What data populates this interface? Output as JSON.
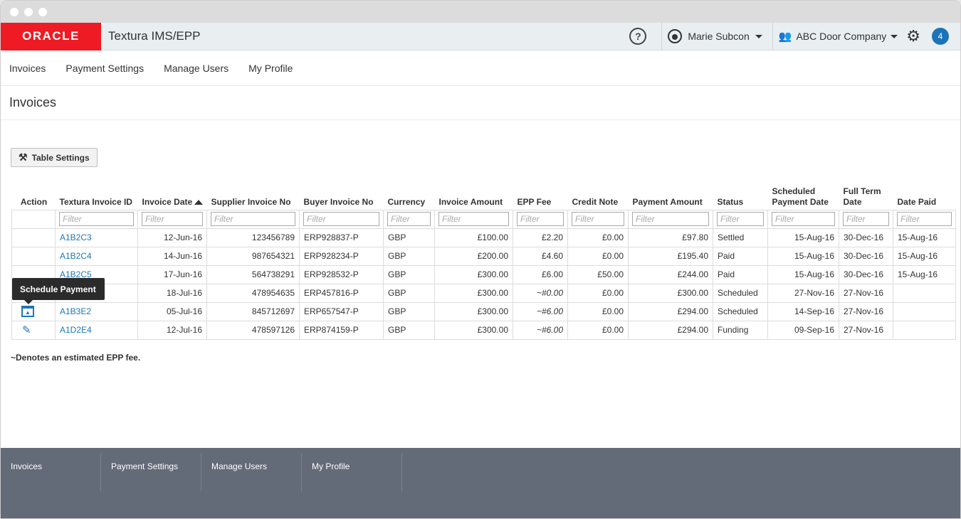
{
  "header": {
    "logo": "ORACLE",
    "app_title": "Textura IMS/EPP",
    "help_label": "?",
    "user_name": "Marie Subcon",
    "company_name": "ABC Door Company",
    "notification_count": "4"
  },
  "nav": {
    "items": [
      {
        "label": "Invoices"
      },
      {
        "label": "Payment Settings"
      },
      {
        "label": "Manage Users"
      },
      {
        "label": "My Profile"
      }
    ]
  },
  "page": {
    "title": "Invoices",
    "table_settings_label": "Table Settings",
    "note": "~Denotes an estimated EPP fee.",
    "tooltip": "Schedule Payment"
  },
  "table": {
    "columns": [
      {
        "key": "action",
        "label": "Action"
      },
      {
        "key": "textura_id",
        "label": "Textura Invoice ID"
      },
      {
        "key": "invoice_date",
        "label": "Invoice Date"
      },
      {
        "key": "supplier_no",
        "label": "Supplier Invoice No"
      },
      {
        "key": "buyer_no",
        "label": "Buyer Invoice No"
      },
      {
        "key": "currency",
        "label": "Currency"
      },
      {
        "key": "invoice_amount",
        "label": "Invoice Amount"
      },
      {
        "key": "epp_fee",
        "label": "EPP Fee"
      },
      {
        "key": "credit_note",
        "label": "Credit Note"
      },
      {
        "key": "payment_amount",
        "label": "Payment Amount"
      },
      {
        "key": "status",
        "label": "Status"
      },
      {
        "key": "scheduled_date",
        "label": "Scheduled Payment Date"
      },
      {
        "key": "full_term",
        "label": "Full Term Date"
      },
      {
        "key": "date_paid",
        "label": "Date Paid"
      }
    ],
    "filter_placeholder": "Filter",
    "rows": [
      {
        "action": "",
        "textura_id": "A1B2C3",
        "invoice_date": "12-Jun-16",
        "supplier_no": "123456789",
        "buyer_no": "ERP928837-P",
        "currency": "GBP",
        "invoice_amount": "£100.00",
        "epp_fee": "£2.20",
        "credit_note": "£0.00",
        "payment_amount": "£97.80",
        "status": "Settled",
        "scheduled_date": "15-Aug-16",
        "full_term": "30-Dec-16",
        "date_paid": "15-Aug-16"
      },
      {
        "action": "",
        "textura_id": "A1B2C4",
        "invoice_date": "14-Jun-16",
        "supplier_no": "987654321",
        "buyer_no": "ERP928234-P",
        "currency": "GBP",
        "invoice_amount": "£200.00",
        "epp_fee": "£4.60",
        "credit_note": "£0.00",
        "payment_amount": "£195.40",
        "status": "Paid",
        "scheduled_date": "15-Aug-16",
        "full_term": "30-Dec-16",
        "date_paid": "15-Aug-16"
      },
      {
        "action": "",
        "textura_id": "A1B2C5",
        "invoice_date": "17-Jun-16",
        "supplier_no": "564738291",
        "buyer_no": "ERP928532-P",
        "currency": "GBP",
        "invoice_amount": "£300.00",
        "epp_fee": "£6.00",
        "credit_note": "£50.00",
        "payment_amount": "£244.00",
        "status": "Paid",
        "scheduled_date": "15-Aug-16",
        "full_term": "30-Dec-16",
        "date_paid": "15-Aug-16"
      },
      {
        "action": "",
        "textura_id": "",
        "invoice_date": "18-Jul-16",
        "supplier_no": "478954635",
        "buyer_no": "ERP457816-P",
        "currency": "GBP",
        "invoice_amount": "£300.00",
        "epp_fee": "~#0.00",
        "credit_note": "£0.00",
        "payment_amount": "£300.00",
        "status": "Scheduled",
        "scheduled_date": "27-Nov-16",
        "full_term": "27-Nov-16",
        "date_paid": ""
      },
      {
        "action": "calendar-icon",
        "textura_id": "A1B3E2",
        "invoice_date": "05-Jul-16",
        "supplier_no": "845712697",
        "buyer_no": "ERP657547-P",
        "currency": "GBP",
        "invoice_amount": "£300.00",
        "epp_fee": "~#6.00",
        "credit_note": "£0.00",
        "payment_amount": "£294.00",
        "status": "Scheduled",
        "scheduled_date": "14-Sep-16",
        "full_term": "27-Nov-16",
        "date_paid": ""
      },
      {
        "action": "pencil-icon",
        "textura_id": "A1D2E4",
        "invoice_date": "12-Jul-16",
        "supplier_no": "478597126",
        "buyer_no": "ERP874159-P",
        "currency": "GBP",
        "invoice_amount": "£300.00",
        "epp_fee": "~#6.00",
        "credit_note": "£0.00",
        "payment_amount": "£294.00",
        "status": "Funding",
        "scheduled_date": "09-Sep-16",
        "full_term": "27-Nov-16",
        "date_paid": ""
      }
    ]
  },
  "footer": {
    "items": [
      {
        "label": "Invoices"
      },
      {
        "label": "Payment Settings"
      },
      {
        "label": "Manage Users"
      },
      {
        "label": "My Profile"
      }
    ]
  },
  "colors": {
    "oracle_red": "#ee1b24",
    "link_blue": "#1f77b8",
    "footer_bg": "#636a78",
    "header_bg": "#e9eef0"
  }
}
